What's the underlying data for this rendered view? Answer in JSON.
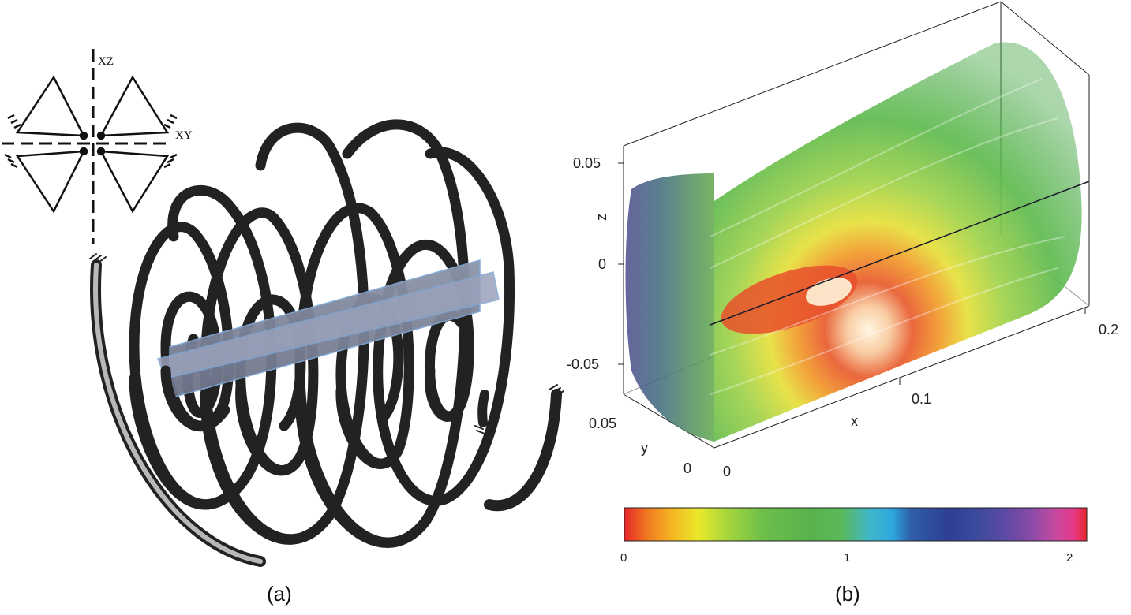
{
  "panel_a": {
    "caption": "(a)",
    "plane_label_xz": "XZ",
    "plane_label_xy": "XY"
  },
  "panel_b": {
    "caption": "(b)",
    "axes": {
      "z_label": "z",
      "y_label": "y",
      "x_label": "x",
      "z_ticks": [
        "0.05",
        "0",
        "-0.05"
      ],
      "y_ticks": [
        "0.05",
        "0"
      ],
      "x_ticks": [
        "0",
        "0.1",
        "0.2"
      ]
    },
    "colorbar": {
      "ticks": [
        "0",
        "1",
        "2"
      ],
      "stops": [
        "#e8262a",
        "#f07a20",
        "#f5b222",
        "#e9e92a",
        "#a9d63c",
        "#6dbf4a",
        "#58b24c",
        "#5ab95a",
        "#3fb7c8",
        "#2ea6df",
        "#2f5ea8",
        "#2e3f92",
        "#3a4a9c",
        "#5b4aa3",
        "#8a4aa8",
        "#c44aa0",
        "#e43a8c",
        "#e8262a"
      ]
    }
  }
}
